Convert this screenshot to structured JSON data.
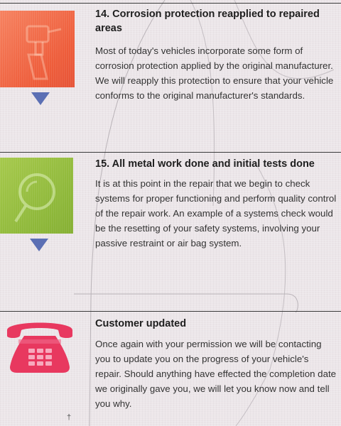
{
  "sections": [
    {
      "heading_line1": "14. Corrosion protection reapplied to repaired",
      "heading_line2": "areas",
      "body_lines": [
        "Most of today's vehicles incorporate some form of",
        "corrosion protection applied by the original manufacturer.",
        "We will reapply this protection to ensure that your vehicle",
        "conforms to the original manufacturer's standards."
      ],
      "icon": "spray-gun-icon",
      "icon_color": "#ef5e3c"
    },
    {
      "heading": "15. All metal work done and initial tests done",
      "body_lines": [
        "It is at this point in the repair that we begin to check",
        "systems for proper functioning and perform quality control",
        "of the repair work. An example of a systems check would",
        "be the resetting of your safety systems, involving your",
        "passive restraint or air bag system."
      ],
      "icon": "magnifying-glass-icon",
      "icon_color": "#8eb83a"
    },
    {
      "heading": "Customer updated",
      "body_lines": [
        "Once again with your permission we will be contacting",
        "you to update you on the progress of your vehicle's",
        "repair. Should anything have effected the completion date",
        "we originally gave you, we will let you know now and tell",
        "you why."
      ],
      "icon": "telephone-icon",
      "icon_color": "#e8385f"
    }
  ],
  "colors": {
    "pointer": "#5b6fb4",
    "rule": "#3a3a3a",
    "background": "#ece6e9"
  }
}
